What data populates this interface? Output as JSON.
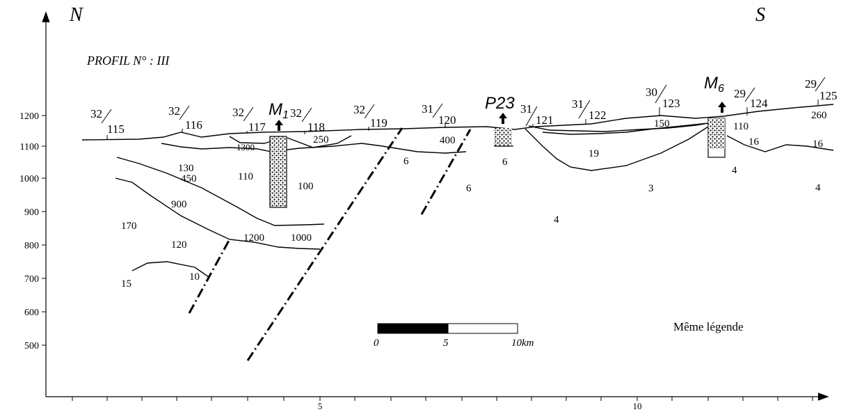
{
  "directions": {
    "north": "N",
    "south": "S"
  },
  "profile_title": "PROFIL N° : III",
  "legend_note": "Même légende",
  "y_axis": {
    "ticks": [
      "1200",
      "1100",
      "1000",
      "900",
      "800",
      "700",
      "600",
      "500"
    ]
  },
  "x_axis": {
    "ticks": [
      "5",
      "10"
    ]
  },
  "stations": [
    {
      "numerator": "32",
      "denominator": "115"
    },
    {
      "numerator": "32",
      "denominator": "116"
    },
    {
      "numerator": "32",
      "denominator": "117"
    },
    {
      "numerator": "32",
      "denominator": "118"
    },
    {
      "numerator": "32",
      "denominator": "119"
    },
    {
      "numerator": "31",
      "denominator": "120"
    },
    {
      "numerator": "31",
      "denominator": "121"
    },
    {
      "numerator": "31",
      "denominator": "122"
    },
    {
      "numerator": "30",
      "denominator": "123"
    },
    {
      "numerator": "29",
      "denominator": "124"
    },
    {
      "numerator": "29",
      "denominator": "125"
    }
  ],
  "wells": {
    "m1": {
      "label": "M",
      "sub": "1"
    },
    "p23": {
      "label": "P23"
    },
    "m6": {
      "label": "M",
      "sub": "6"
    }
  },
  "resistivities": {
    "r1300": "1300",
    "r250": "250",
    "r400": "400",
    "r130": "130",
    "r450": "450",
    "r110a": "110",
    "r100": "100",
    "r6a": "6",
    "r6b": "6",
    "r6c": "6",
    "r900": "900",
    "r170": "170",
    "r120": "120",
    "r1200": "1200",
    "r1000": "1000",
    "r15": "15",
    "r10": "10",
    "r4a": "4",
    "r150": "150",
    "r19": "19",
    "r3": "3",
    "r110b": "110",
    "r16a": "16",
    "r16b": "16",
    "r4b": "4",
    "r4c": "4",
    "r260": "260"
  },
  "scale_bar": {
    "labels": [
      "0",
      "5",
      "10km"
    ],
    "fill_colors": [
      "#000000",
      "#ffffff"
    ]
  },
  "colors": {
    "ink": "#000000",
    "background": "#ffffff"
  }
}
